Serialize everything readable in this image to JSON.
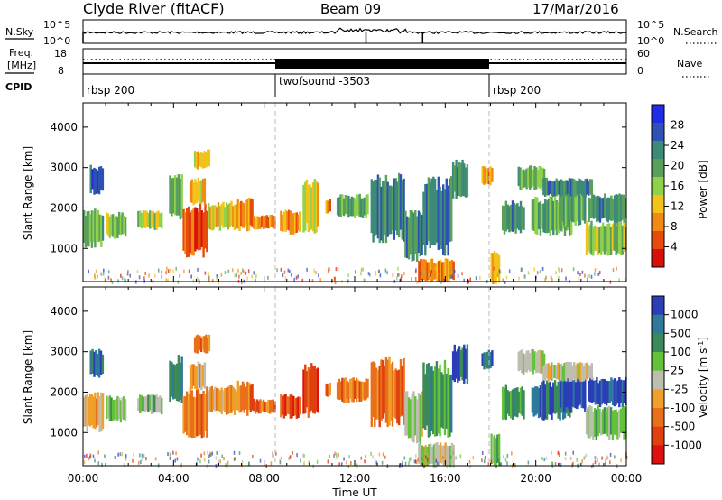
{
  "header": {
    "title": "Clyde River (fitACF)",
    "beam": "Beam 09",
    "date": "17/Mar/2016"
  },
  "noise_panel": {
    "left_label": "N.Sky",
    "right_label": "N.Search",
    "left_ticks": [
      "10^5",
      "10^0"
    ],
    "right_ticks": [
      "10^5",
      "10^0"
    ]
  },
  "freq_panel": {
    "left_label_1": "Freq.",
    "left_label_2": "[MHz]",
    "left_ticks": [
      "18",
      "8"
    ],
    "right_label": "Nave",
    "right_ticks": [
      "60",
      "0"
    ]
  },
  "cpid_panel": {
    "label": "CPID",
    "segments": [
      {
        "label": "rbsp 200",
        "start_h": 0.0
      },
      {
        "label": "twofsound -3503",
        "start_h": 8.5
      },
      {
        "label": "rbsp 200",
        "start_h": 18.0
      }
    ]
  },
  "colors": {
    "power": [
      "#1f2ee6",
      "#2f50b4",
      "#3c8a78",
      "#5aa05a",
      "#8fd24a",
      "#f2c31a",
      "#f08a14",
      "#e84a0a",
      "#d8100a"
    ],
    "velocity": [
      "#2b3eb8",
      "#2f7a9a",
      "#3a8a5a",
      "#62c23a",
      "#bdbdb0",
      "#f0a02a",
      "#e8701a",
      "#e04010",
      "#e01010"
    ]
  },
  "chart_data": [
    {
      "type": "heatmap",
      "name": "power",
      "ylabel": "Slant Range [km]",
      "y_ticks": [
        "1000",
        "2000",
        "3000",
        "4000"
      ],
      "x_ticks": [
        "00:00",
        "04:00",
        "08:00",
        "12:00",
        "16:00",
        "20:00",
        "00:00"
      ],
      "xlim_hours": [
        0,
        24
      ],
      "ylim_km": [
        180,
        4600
      ],
      "colorbar_label": "Power [dB]",
      "colorbar_ticks": [
        "28",
        "24",
        "20",
        "16",
        "12",
        "8",
        "4"
      ],
      "scale_range": [
        0,
        32
      ]
    },
    {
      "type": "heatmap",
      "name": "velocity",
      "ylabel": "Slant Range [km]",
      "y_ticks": [
        "1000",
        "2000",
        "3000",
        "4000"
      ],
      "x_ticks": [
        "00:00",
        "04:00",
        "08:00",
        "12:00",
        "16:00",
        "20:00",
        "00:00"
      ],
      "xlabel": "Time UT",
      "xlim_hours": [
        0,
        24
      ],
      "ylim_km": [
        180,
        4600
      ],
      "colorbar_label": "Velocity [m s",
      "colorbar_label_sup": "-1",
      "colorbar_label_end": "]",
      "colorbar_ticks": [
        "1000",
        "500",
        "100",
        "25",
        "-25",
        "-100",
        "-500",
        "-1000"
      ]
    }
  ]
}
